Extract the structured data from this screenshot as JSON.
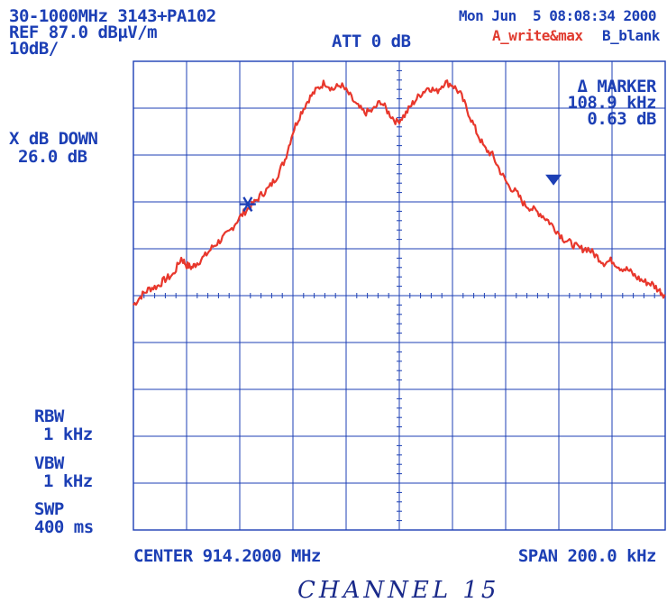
{
  "header": {
    "range_model": "30-1000MHz 3143+PA102",
    "ref_level": "REF 87.0 dBµV/m",
    "scale": "10dB/",
    "attenuation": "ATT 0 dB",
    "datetime": "Mon Jun  5 08:08:34 2000",
    "trace_a": "A_write&max",
    "trace_b": "B_blank"
  },
  "left_panel": {
    "xdb_label": "X dB DOWN",
    "xdb_value": "26.0 dB",
    "rbw_label": "RBW",
    "rbw_value": "1 kHz",
    "vbw_label": "VBW",
    "vbw_value": "1 kHz",
    "swp_label": "SWP",
    "swp_value": "400 ms"
  },
  "marker_readout": {
    "title": "Δ MARKER",
    "delta_freq": "108.9 kHz",
    "delta_level": "0.63 dB"
  },
  "footer": {
    "center": "CENTER 914.2000 MHz",
    "span": "SPAN 200.0 kHz"
  },
  "handwritten_note": "CHANNEL 15",
  "colors": {
    "grid": "#1c3fb5",
    "trace": "#e8372c",
    "text": "#1c3fb5"
  },
  "chart_data": {
    "type": "line",
    "xlabel": "",
    "ylabel": "",
    "x_unit": "kHz offset from center",
    "xlim": [
      -100,
      100
    ],
    "ylim": [
      -13,
      87
    ],
    "grid": true,
    "series": [
      {
        "x": [
          -100,
          -97,
          -94,
          -91,
          -88,
          -85,
          -82,
          -80,
          -78,
          -76,
          -73,
          -70,
          -67,
          -64,
          -61,
          -58,
          -55,
          -52,
          -49,
          -46,
          -43,
          -40,
          -37,
          -34,
          -31,
          -28,
          -25,
          -22,
          -19,
          -16,
          -13,
          -10,
          -7,
          -4,
          -1,
          2,
          5,
          8,
          11,
          14,
          17,
          20,
          23,
          26,
          29,
          32,
          35,
          38,
          41,
          44,
          47,
          50,
          53,
          56,
          59,
          62,
          65,
          68,
          71,
          74,
          77,
          80,
          83,
          86,
          89,
          92,
          95,
          98,
          100
        ],
        "y": [
          35.0,
          37.0,
          38.5,
          39.0,
          40.5,
          41.5,
          45.0,
          43.5,
          43.0,
          44.0,
          45.5,
          47.5,
          49.0,
          50.5,
          53.0,
          55.0,
          56.5,
          58.5,
          60.0,
          62.5,
          66.0,
          72.0,
          76.0,
          79.0,
          81.0,
          82.5,
          81.0,
          82.0,
          80.0,
          77.5,
          76.0,
          76.5,
          78.5,
          76.0,
          74.0,
          75.5,
          78.0,
          80.0,
          81.5,
          80.5,
          82.5,
          82.0,
          80.0,
          76.0,
          72.0,
          68.5,
          67.0,
          63.5,
          60.5,
          59.0,
          56.5,
          55.5,
          54.5,
          53.0,
          51.0,
          49.0,
          48.0,
          47.0,
          47.0,
          45.5,
          44.0,
          44.5,
          43.0,
          42.5,
          41.0,
          40.0,
          39.5,
          38.0,
          37.0
        ]
      }
    ],
    "markers": [
      {
        "symbol": "*",
        "x": -57,
        "y": 56.5
      },
      {
        "symbol": "▼",
        "x": 58,
        "y": 60.5
      }
    ]
  }
}
